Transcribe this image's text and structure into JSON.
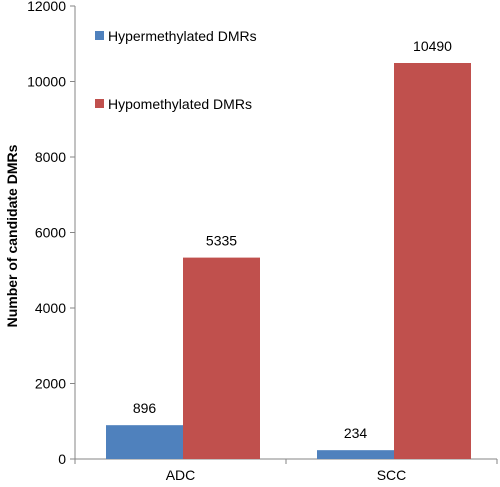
{
  "chart_data": {
    "type": "bar",
    "title": "",
    "xlabel": "",
    "ylabel": "Number  of  candidate DMRs",
    "categories": [
      "ADC",
      "SCC"
    ],
    "ylim": [
      0,
      12000
    ],
    "yticks": [
      0,
      2000,
      4000,
      6000,
      8000,
      10000,
      12000
    ],
    "grid": false,
    "legend_position": "top-left",
    "series": [
      {
        "name": "Hypermethylated DMRs",
        "values": [
          896,
          234
        ],
        "color": "#4F81BD"
      },
      {
        "name": "Hypomethylated DMRs",
        "values": [
          5335,
          10490
        ],
        "color": "#C0504D"
      }
    ],
    "data_labels": true
  }
}
